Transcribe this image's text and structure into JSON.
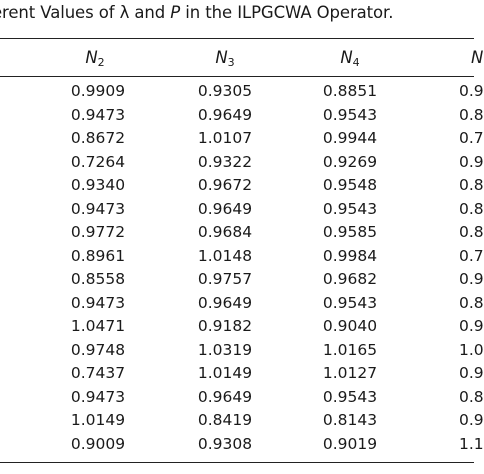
{
  "caption": {
    "part1": "erent Values of λ and ",
    "var": "P",
    "part2": " in the ILPGCWA Operator."
  },
  "headers": [
    {
      "base": "N",
      "sub": "2"
    },
    {
      "base": "N",
      "sub": "3"
    },
    {
      "base": "N",
      "sub": "4"
    },
    {
      "base": "N",
      "sub": ""
    }
  ],
  "rows": [
    [
      "0.9909",
      "0.9305",
      "0.8851",
      "0.9"
    ],
    [
      "0.9473",
      "0.9649",
      "0.9543",
      "0.8"
    ],
    [
      "0.8672",
      "1.0107",
      "0.9944",
      "0.7"
    ],
    [
      "0.7264",
      "0.9322",
      "0.9269",
      "0.9"
    ],
    [
      "0.9340",
      "0.9672",
      "0.9548",
      "0.8"
    ],
    [
      "0.9473",
      "0.9649",
      "0.9543",
      "0.8"
    ],
    [
      "0.9772",
      "0.9684",
      "0.9585",
      "0.8"
    ],
    [
      "0.8961",
      "1.0148",
      "0.9984",
      "0.7"
    ],
    [
      "0.8558",
      "0.9757",
      "0.9682",
      "0.9"
    ],
    [
      "0.9473",
      "0.9649",
      "0.9543",
      "0.8"
    ],
    [
      "1.0471",
      "0.9182",
      "0.9040",
      "0.9"
    ],
    [
      "0.9748",
      "1.0319",
      "1.0165",
      "1.0"
    ],
    [
      "0.7437",
      "1.0149",
      "1.0127",
      "0.9"
    ],
    [
      "0.9473",
      "0.9649",
      "0.9543",
      "0.8"
    ],
    [
      "1.0149",
      "0.8419",
      "0.8143",
      "0.9"
    ],
    [
      "0.9009",
      "0.9308",
      "0.9019",
      "1.1"
    ]
  ]
}
